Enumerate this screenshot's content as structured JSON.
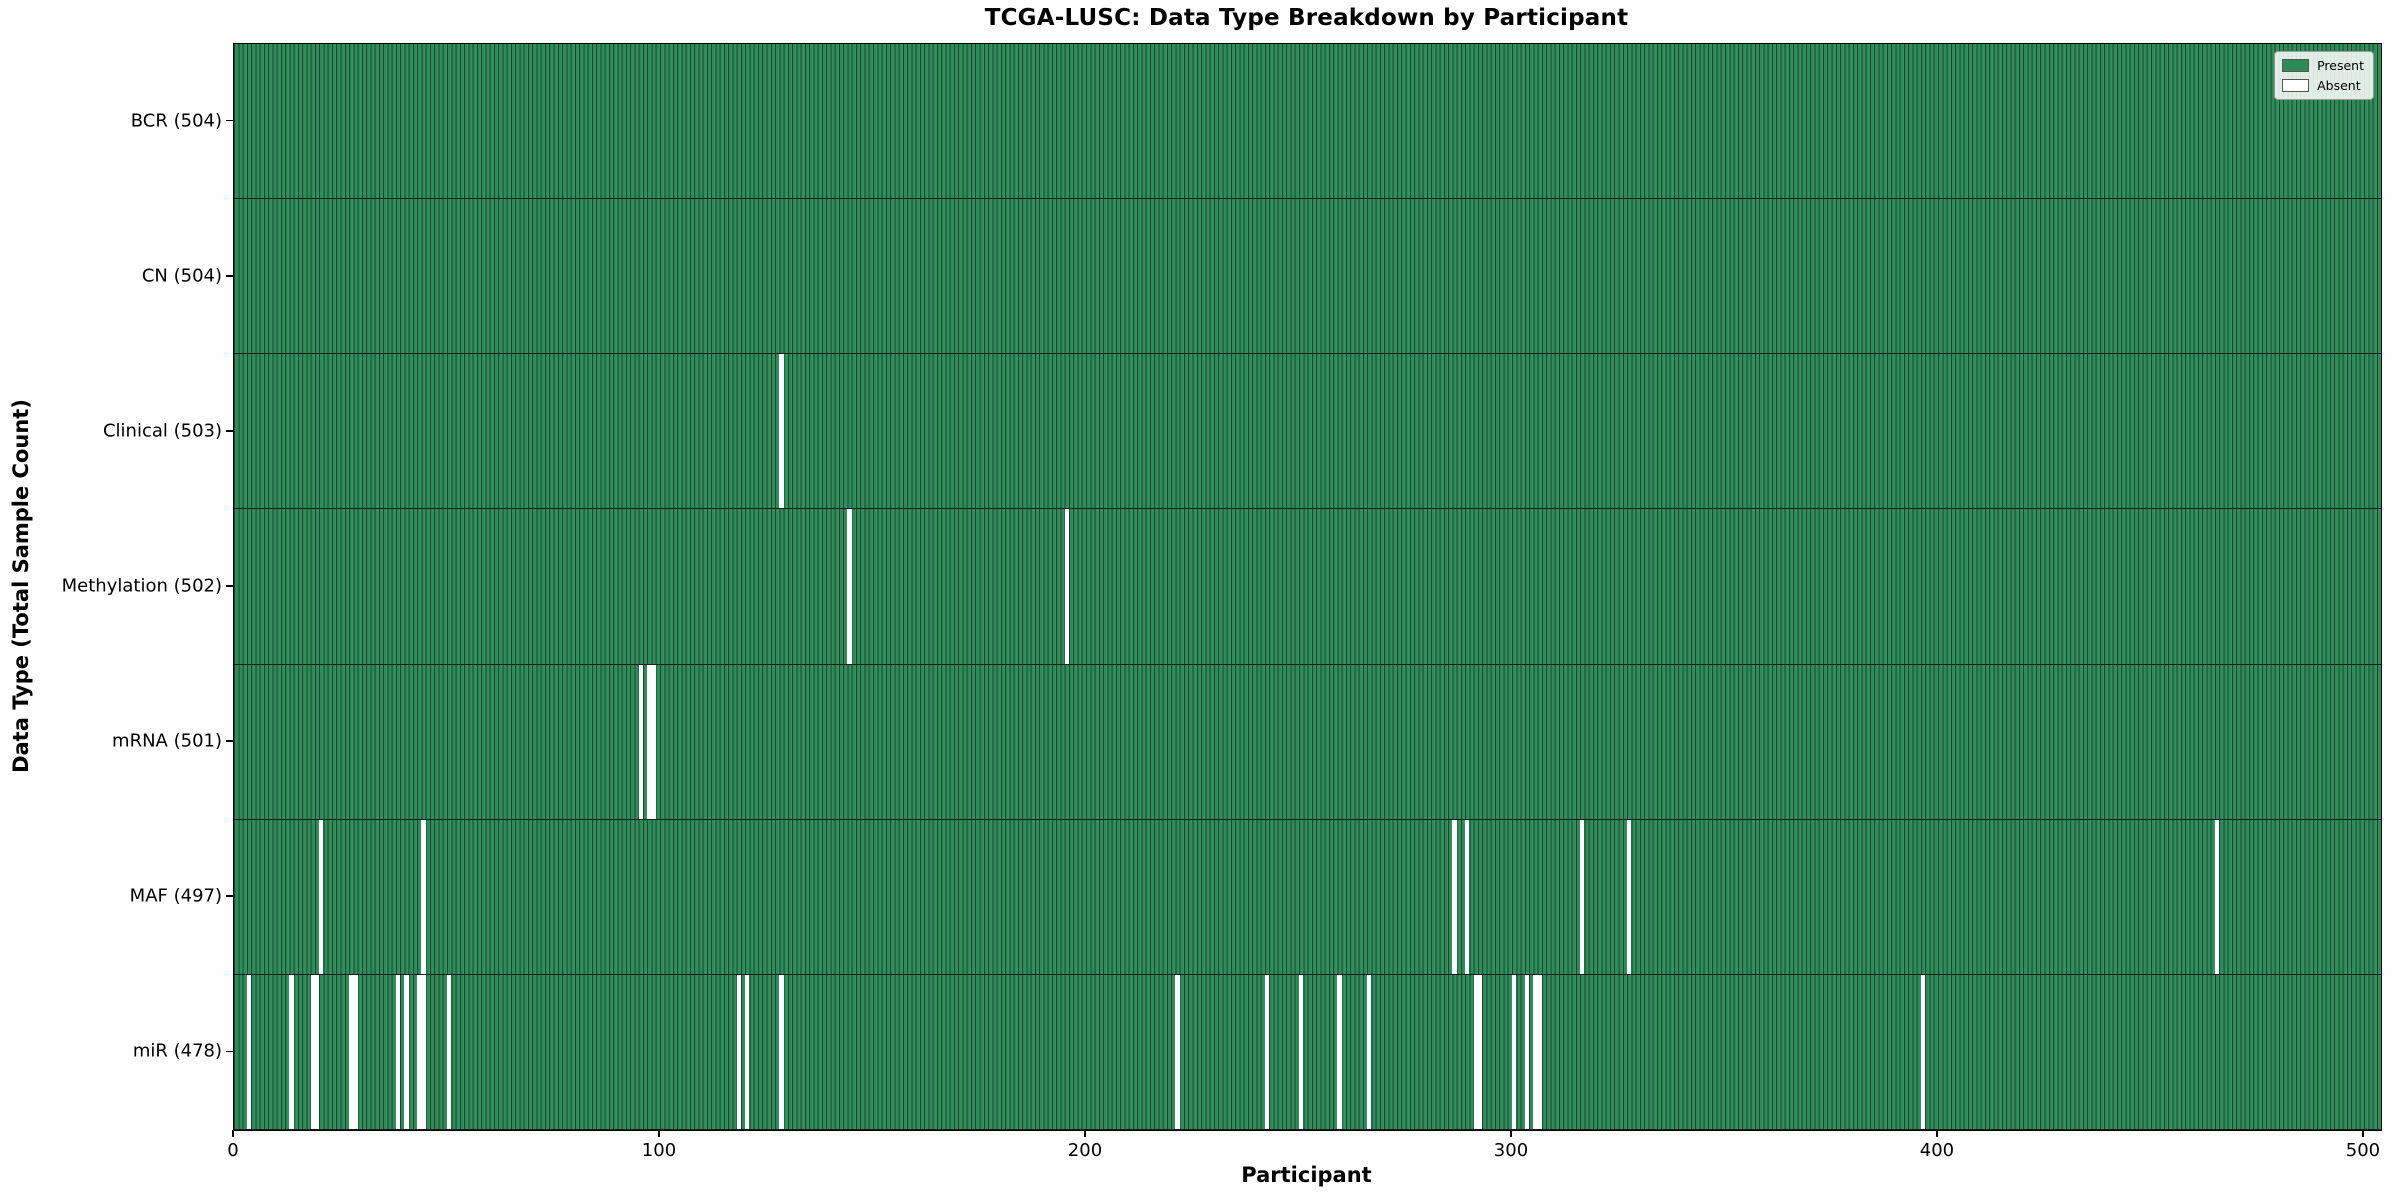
{
  "page": {
    "title": "TCGA-LUSC: Data Type Breakdown by Participant"
  },
  "chart_data": {
    "type": "heatmap",
    "title": "TCGA-LUSC: Data Type Breakdown by Participant",
    "xlabel": "Participant",
    "ylabel": "Data Type (Total Sample Count)",
    "x_ticks": [
      0,
      100,
      200,
      300,
      400,
      500
    ],
    "x_range": [
      0,
      504
    ],
    "total_participants": 504,
    "grid": false,
    "legend_position": "upper-right",
    "legend_entries": [
      {
        "label": "Present",
        "color": "#2e8b57"
      },
      {
        "label": "Absent",
        "color": "#ffffff"
      }
    ],
    "colors": {
      "present": "#2e8b57",
      "bar_edge": "#17482e",
      "absent": "#ffffff",
      "axis": "#000000",
      "row_divider": "#1c1c1c"
    },
    "rows": [
      {
        "data_type": "BCR",
        "label": "BCR (504)",
        "total_samples": 504,
        "absent_participants": []
      },
      {
        "data_type": "CN",
        "label": "CN (504)",
        "total_samples": 504,
        "absent_participants": []
      },
      {
        "data_type": "Clinical",
        "label": "Clinical (503)",
        "total_samples": 503,
        "absent_participants": [
          128
        ]
      },
      {
        "data_type": "Methylation",
        "label": "Methylation (502)",
        "total_samples": 502,
        "absent_participants": [
          144,
          195
        ]
      },
      {
        "data_type": "mRNA",
        "label": "mRNA (501)",
        "total_samples": 501,
        "absent_participants": [
          95,
          97,
          98
        ]
      },
      {
        "data_type": "MAF",
        "label": "MAF (497)",
        "total_samples": 497,
        "absent_participants": [
          20,
          44,
          286,
          289,
          316,
          327,
          465
        ]
      },
      {
        "data_type": "miR",
        "label": "miR (478)",
        "total_samples": 478,
        "absent_participants": [
          3,
          13,
          18,
          19,
          27,
          28,
          38,
          40,
          43,
          44,
          50,
          118,
          120,
          128,
          221,
          242,
          250,
          259,
          266,
          291,
          292,
          300,
          303,
          305,
          306,
          396
        ]
      }
    ]
  }
}
